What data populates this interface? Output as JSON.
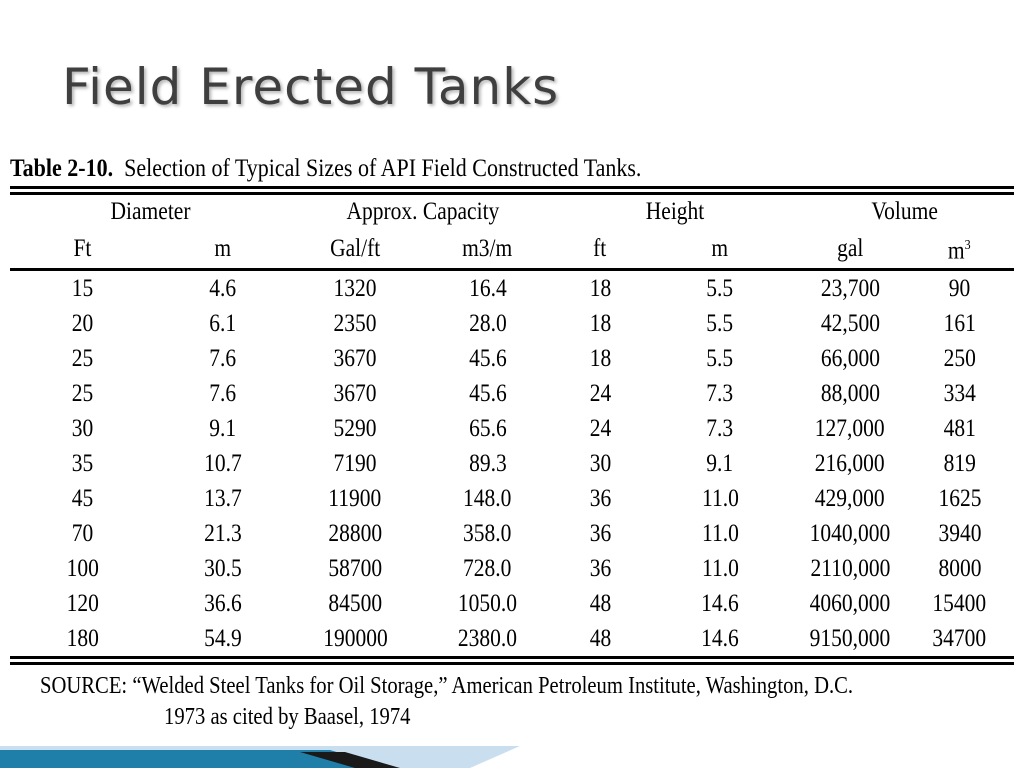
{
  "slide": {
    "title": "Field Erected Tanks"
  },
  "table": {
    "caption_bold": "Table 2-10.",
    "caption_text": "Selection of Typical Sizes of API Field Constructed Tanks.",
    "groups": [
      "Diameter",
      "Approx. Capacity",
      "Height",
      "Volume"
    ],
    "units": [
      "Ft",
      "m",
      "Gal/ft",
      "m3/m",
      "ft",
      "m",
      "gal",
      "m",
      "3"
    ],
    "rows": [
      [
        "15",
        "4.6",
        "1320",
        "16.4",
        "18",
        "5.5",
        "23,700",
        "90"
      ],
      [
        "20",
        "6.1",
        "2350",
        "28.0",
        "18",
        "5.5",
        "42,500",
        "161"
      ],
      [
        "25",
        "7.6",
        "3670",
        "45.6",
        "18",
        "5.5",
        "66,000",
        "250"
      ],
      [
        "25",
        "7.6",
        "3670",
        "45.6",
        "24",
        "7.3",
        "88,000",
        "334"
      ],
      [
        "30",
        "9.1",
        "5290",
        "65.6",
        "24",
        "7.3",
        "127,000",
        "481"
      ],
      [
        "35",
        "10.7",
        "7190",
        "89.3",
        "30",
        "9.1",
        "216,000",
        "819"
      ],
      [
        "45",
        "13.7",
        "11900",
        "148.0",
        "36",
        "11.0",
        "429,000",
        "1625"
      ],
      [
        "70",
        "21.3",
        "28800",
        "358.0",
        "36",
        "11.0",
        "1040,000",
        "3940"
      ],
      [
        "100",
        "30.5",
        "58700",
        "728.0",
        "36",
        "11.0",
        "2110,000",
        "8000"
      ],
      [
        "120",
        "36.6",
        "84500",
        "1050.0",
        "48",
        "14.6",
        "4060,000",
        "15400"
      ],
      [
        "180",
        "54.9",
        "190000",
        "2380.0",
        "48",
        "14.6",
        "9150,000",
        "34700"
      ]
    ],
    "source_line1": "SOURCE:  “Welded Steel Tanks for Oil Storage,” American Petroleum Institute, Washington, D.C.",
    "source_line2": "1973 as cited by Baasel, 1974"
  },
  "decor": {
    "accent": "#1f7fa8",
    "dark": "#1a1a1a",
    "light": "#c9dff0"
  }
}
